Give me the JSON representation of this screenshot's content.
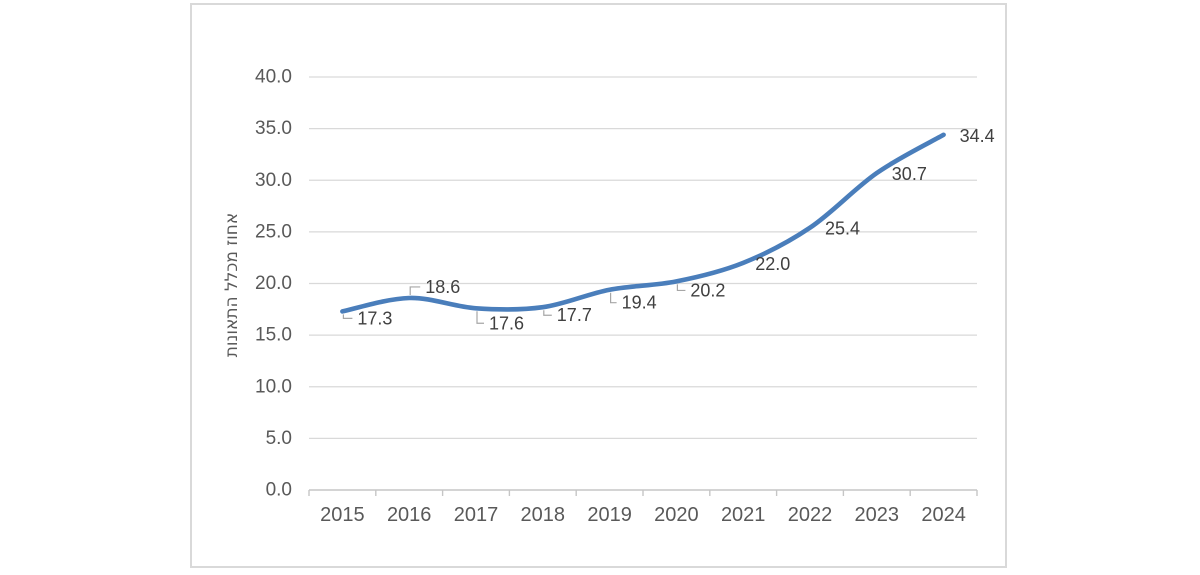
{
  "page": {
    "background": "#ffffff"
  },
  "chart_data": {
    "type": "line",
    "title": "",
    "categories": [
      "2015",
      "2016",
      "2017",
      "2018",
      "2019",
      "2020",
      "2021",
      "2022",
      "2023",
      "2024"
    ],
    "values": [
      17.3,
      18.6,
      17.6,
      17.7,
      19.4,
      20.2,
      22.0,
      25.4,
      30.7,
      34.4
    ],
    "data_labels": [
      "17.3",
      "18.6",
      "17.6",
      "17.7",
      "19.4",
      "20.2",
      "22.0",
      "25.4",
      "30.7",
      "34.4"
    ],
    "xlabel": "",
    "ylabel": "אחוז מכלל התאונות",
    "ylim": [
      0,
      40
    ],
    "ytick_step": 5,
    "ytick_labels": [
      "0.0",
      "5.0",
      "10.0",
      "15.0",
      "20.0",
      "25.0",
      "30.0",
      "35.0",
      "40.0"
    ],
    "grid": "horizontal",
    "legend": "none",
    "smooth_line": true,
    "colors": {
      "line": "#4A7EBB",
      "gridline": "#D9D9D9",
      "axis": "#C6C6C6",
      "tick_text": "#595959",
      "data_label_text": "#404040",
      "leader_line": "#A6A6A6",
      "frame_border": "#D9D9D9"
    }
  }
}
